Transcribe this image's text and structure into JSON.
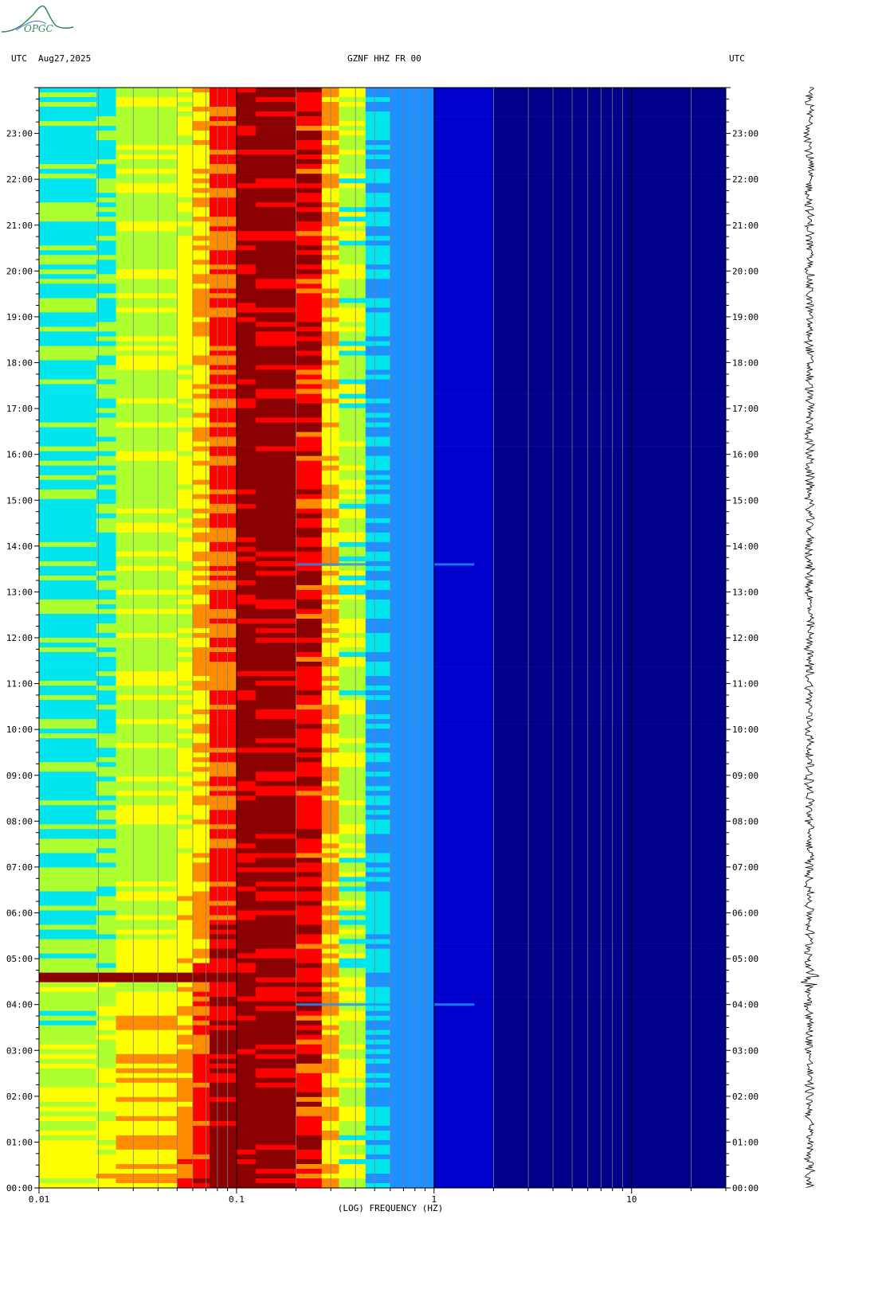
{
  "header": {
    "left_tz": "UTC",
    "date": "Aug27,2025",
    "station": "GZNF HHZ FR 00",
    "right_tz": "UTC"
  },
  "logo": {
    "text": "OPGC",
    "color": "#2e8b57"
  },
  "chart_data": {
    "type": "heatmap",
    "title": "GZNF HHZ FR 00",
    "xlabel": "(LOG) FREQUENCY (HZ)",
    "xscale": "log",
    "xlim": [
      0.01,
      30
    ],
    "x_ticks": [
      {
        "value": 0.01,
        "label": "0.01"
      },
      {
        "value": 0.1,
        "label": "0.1"
      },
      {
        "value": 1,
        "label": "1"
      },
      {
        "value": 10,
        "label": "10"
      }
    ],
    "ylabel": "UTC",
    "ylim_hours": [
      0,
      24
    ],
    "y_ticks": [
      "00:00",
      "01:00",
      "02:00",
      "03:00",
      "04:00",
      "05:00",
      "06:00",
      "07:00",
      "08:00",
      "09:00",
      "10:00",
      "11:00",
      "12:00",
      "13:00",
      "14:00",
      "15:00",
      "16:00",
      "17:00",
      "18:00",
      "19:00",
      "20:00",
      "21:00",
      "22:00",
      "23:00"
    ],
    "colormap": [
      "#00008b",
      "#0000cd",
      "#1e90ff",
      "#00e5ee",
      "#adff2f",
      "#ffff00",
      "#ff8c00",
      "#ff0000",
      "#8b0000"
    ],
    "events": [
      {
        "time_hours": 4.0,
        "note_freq_max": 1.6
      },
      {
        "time_hours": 4.55,
        "note_freq_max": 0.1
      },
      {
        "time_hours": 13.6,
        "note_freq_max": 1.6
      }
    ],
    "grid": true,
    "side_panel": "seismogram trace"
  }
}
